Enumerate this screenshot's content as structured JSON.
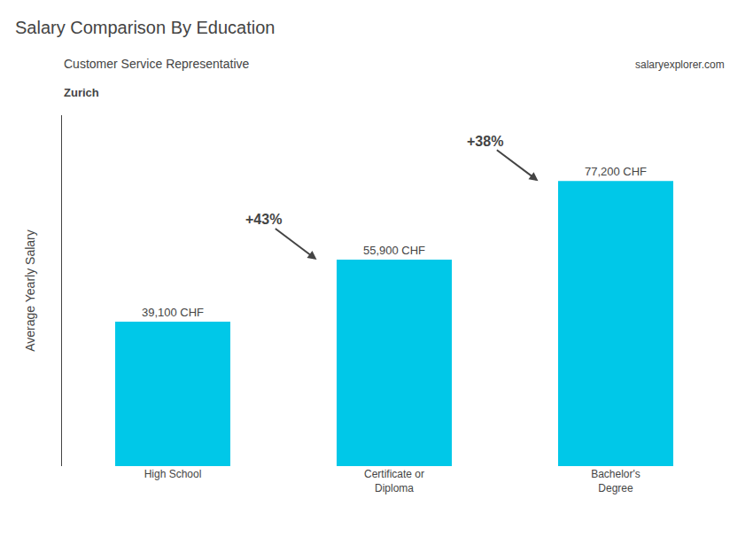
{
  "chart_data": {
    "type": "bar",
    "title": "Salary Comparison By Education",
    "subtitle": "Customer Service Representative",
    "location": "Zurich",
    "source": "salaryexplorer.com",
    "ylabel": "Average Yearly Salary",
    "categories": [
      "High School",
      "Certificate or\nDiploma",
      "Bachelor's\nDegree"
    ],
    "values": [
      39100,
      55900,
      77200
    ],
    "value_labels": [
      "39,100 CHF",
      "55,900 CHF",
      "77,200 CHF"
    ],
    "data_labels": true,
    "annotations": [
      "+43%",
      "+38%"
    ],
    "color": "#00c8e8",
    "ylim": [
      0,
      95000
    ],
    "grid": false,
    "tick_labels": "x"
  }
}
